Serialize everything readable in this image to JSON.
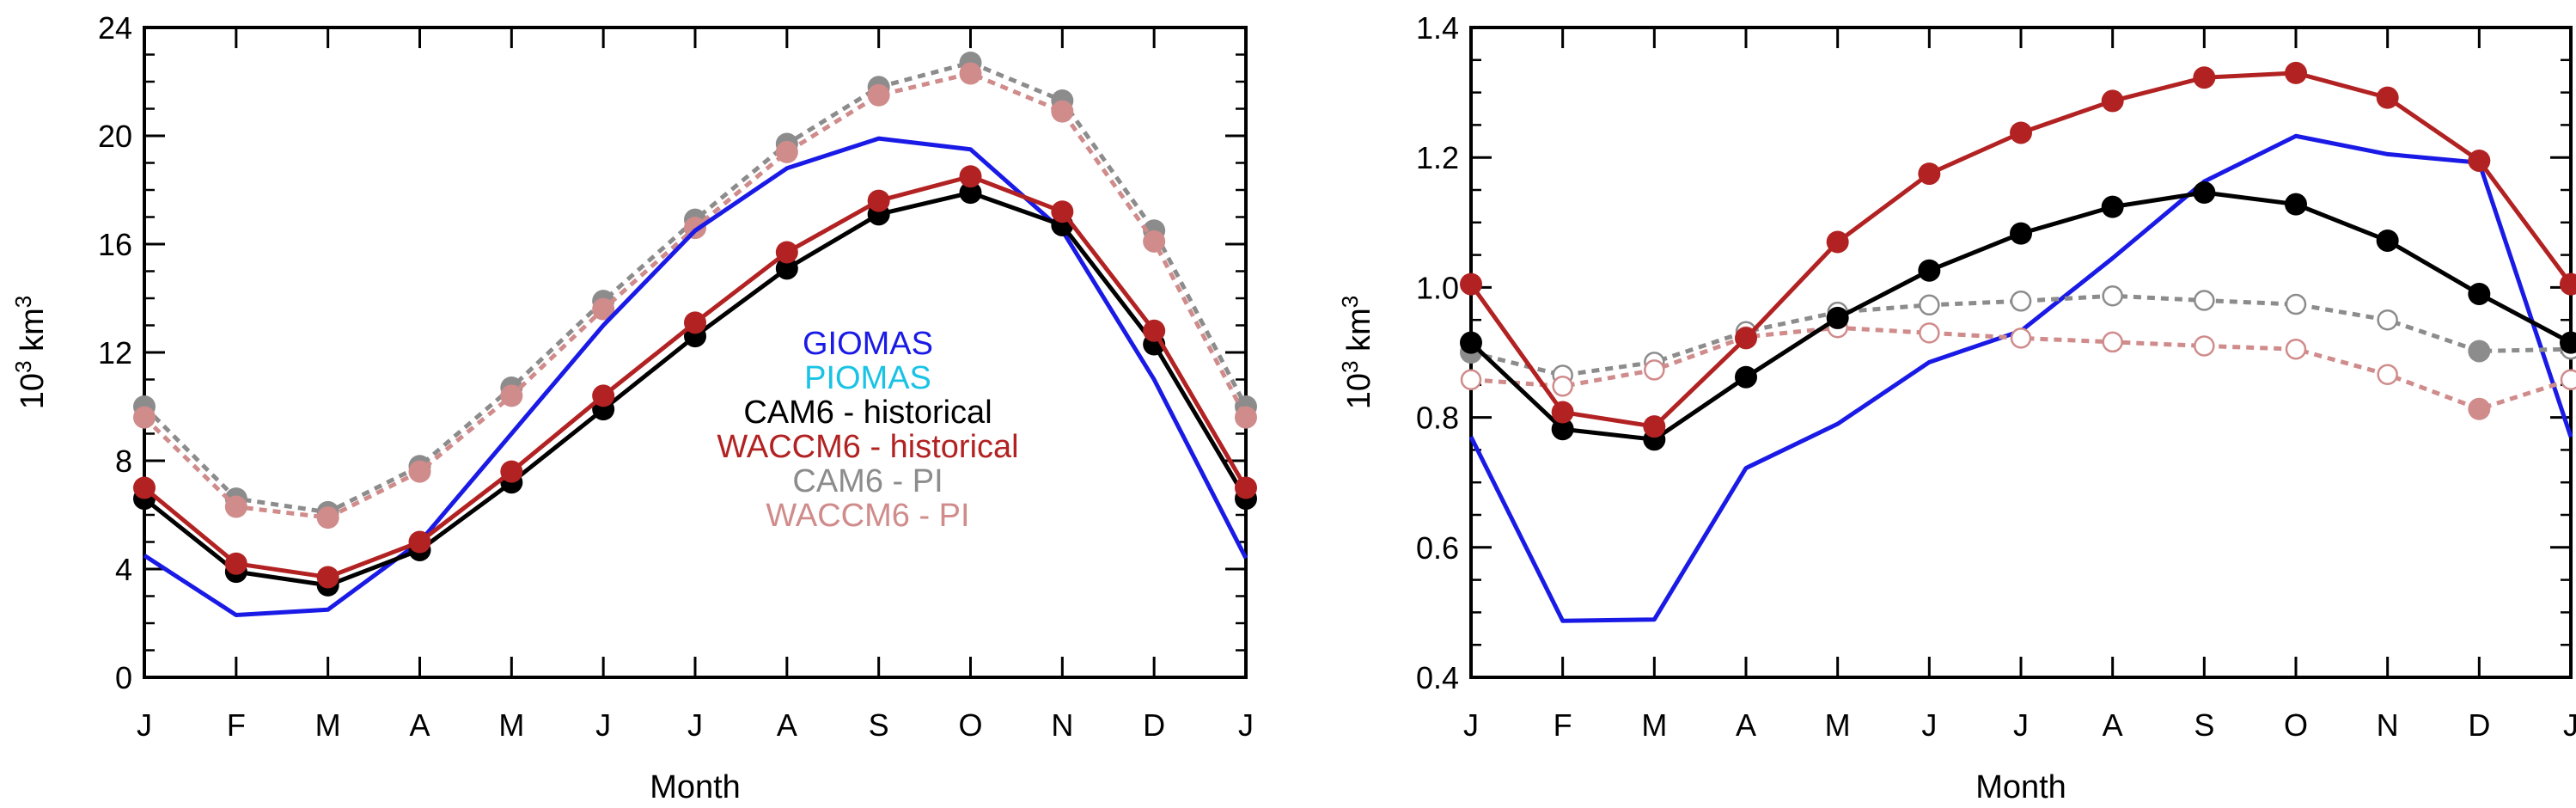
{
  "chart_data": [
    {
      "type": "line",
      "xlabel": "Month",
      "ylabel_base": "10",
      "ylabel_exp": "3",
      "ylabel_unit": " km",
      "ylabel_unit_exp": "3",
      "categories": [
        "J",
        "F",
        "M",
        "A",
        "M",
        "J",
        "J",
        "A",
        "S",
        "O",
        "N",
        "D",
        "J"
      ],
      "ylim": [
        0,
        24
      ],
      "yticks": [
        0,
        4,
        8,
        12,
        16,
        20,
        24
      ],
      "ytick_labels": [
        "0",
        "4",
        "8",
        "12",
        "16",
        "20",
        "24"
      ],
      "legend": [
        {
          "label": "GIOMAS",
          "color": "#1a1ae6"
        },
        {
          "label": "PIOMAS",
          "color": "#19c3e6"
        },
        {
          "label": "CAM6 - historical",
          "color": "#000000"
        },
        {
          "label": "WACCM6 - historical",
          "color": "#b22222"
        },
        {
          "label": "CAM6 - PI",
          "color": "#8c8c8c"
        },
        {
          "label": "WACCM6 - PI",
          "color": "#d08b8b"
        }
      ],
      "series": [
        {
          "name": "CAM6 - PI",
          "color": "#8c8c8c",
          "style": "dashed",
          "marker": "filled",
          "values": [
            10.0,
            6.6,
            6.1,
            7.8,
            10.7,
            13.9,
            16.9,
            19.7,
            21.8,
            22.7,
            21.3,
            16.5,
            10.0
          ]
        },
        {
          "name": "WACCM6 - PI",
          "color": "#d08b8b",
          "style": "dashed",
          "marker": "filled",
          "values": [
            9.6,
            6.3,
            5.9,
            7.6,
            10.4,
            13.6,
            16.6,
            19.4,
            21.5,
            22.3,
            20.9,
            16.1,
            9.6
          ]
        },
        {
          "name": "GIOMAS",
          "color": "#1a1ae6",
          "style": "solid",
          "marker": "none",
          "values": [
            4.5,
            2.3,
            2.5,
            5.0,
            9.0,
            13.0,
            16.5,
            18.8,
            19.9,
            19.5,
            16.5,
            11.0,
            4.4
          ]
        },
        {
          "name": "CAM6 - historical",
          "color": "#000000",
          "style": "solid",
          "marker": "filled",
          "values": [
            6.6,
            3.9,
            3.4,
            4.7,
            7.2,
            9.9,
            12.6,
            15.1,
            17.1,
            17.9,
            16.7,
            12.3,
            6.6
          ]
        },
        {
          "name": "WACCM6 - historical",
          "color": "#b22222",
          "style": "solid",
          "marker": "filled",
          "values": [
            7.0,
            4.2,
            3.7,
            5.0,
            7.6,
            10.4,
            13.1,
            15.7,
            17.6,
            18.5,
            17.2,
            12.8,
            7.0
          ]
        }
      ]
    },
    {
      "type": "line",
      "xlabel": "Month",
      "ylabel_base": "10",
      "ylabel_exp": "3",
      "ylabel_unit": " km",
      "ylabel_unit_exp": "3",
      "categories": [
        "J",
        "F",
        "M",
        "A",
        "M",
        "J",
        "J",
        "A",
        "S",
        "O",
        "N",
        "D",
        "J"
      ],
      "ylim": [
        0.4,
        1.4
      ],
      "yticks": [
        0.4,
        0.6,
        0.8,
        1.0,
        1.2,
        1.4
      ],
      "ytick_labels": [
        "0.4",
        "0.6",
        "0.8",
        "1.0",
        "1.2",
        "1.4"
      ],
      "series": [
        {
          "name": "GIOMAS",
          "color": "#1a1ae6",
          "style": "solid",
          "marker": "none",
          "values": [
            0.77,
            0.487,
            0.489,
            0.722,
            0.79,
            0.885,
            0.933,
            1.045,
            1.163,
            1.233,
            1.205,
            1.192,
            0.77
          ]
        },
        {
          "name": "CAM6 - PI",
          "color": "#8c8c8c",
          "style": "dashed",
          "marker": "open",
          "filled_indices": [
            0,
            11
          ],
          "values": [
            0.9,
            0.865,
            0.885,
            0.932,
            0.962,
            0.973,
            0.979,
            0.987,
            0.98,
            0.974,
            0.95,
            0.902,
            0.905
          ]
        },
        {
          "name": "WACCM6 - PI",
          "color": "#d08b8b",
          "style": "dashed",
          "marker": "open",
          "filled_indices": [
            11
          ],
          "values": [
            0.858,
            0.848,
            0.873,
            0.924,
            0.938,
            0.93,
            0.922,
            0.916,
            0.91,
            0.905,
            0.866,
            0.813,
            0.858
          ]
        },
        {
          "name": "CAM6 - historical",
          "color": "#000000",
          "style": "solid",
          "marker": "filled",
          "values": [
            0.915,
            0.782,
            0.766,
            0.862,
            0.953,
            1.026,
            1.083,
            1.124,
            1.146,
            1.128,
            1.072,
            0.99,
            0.915
          ]
        },
        {
          "name": "WACCM6 - historical",
          "color": "#b22222",
          "style": "solid",
          "marker": "filled",
          "values": [
            1.005,
            0.808,
            0.786,
            0.922,
            1.07,
            1.175,
            1.238,
            1.287,
            1.323,
            1.33,
            1.292,
            1.195,
            1.005
          ]
        }
      ]
    }
  ]
}
